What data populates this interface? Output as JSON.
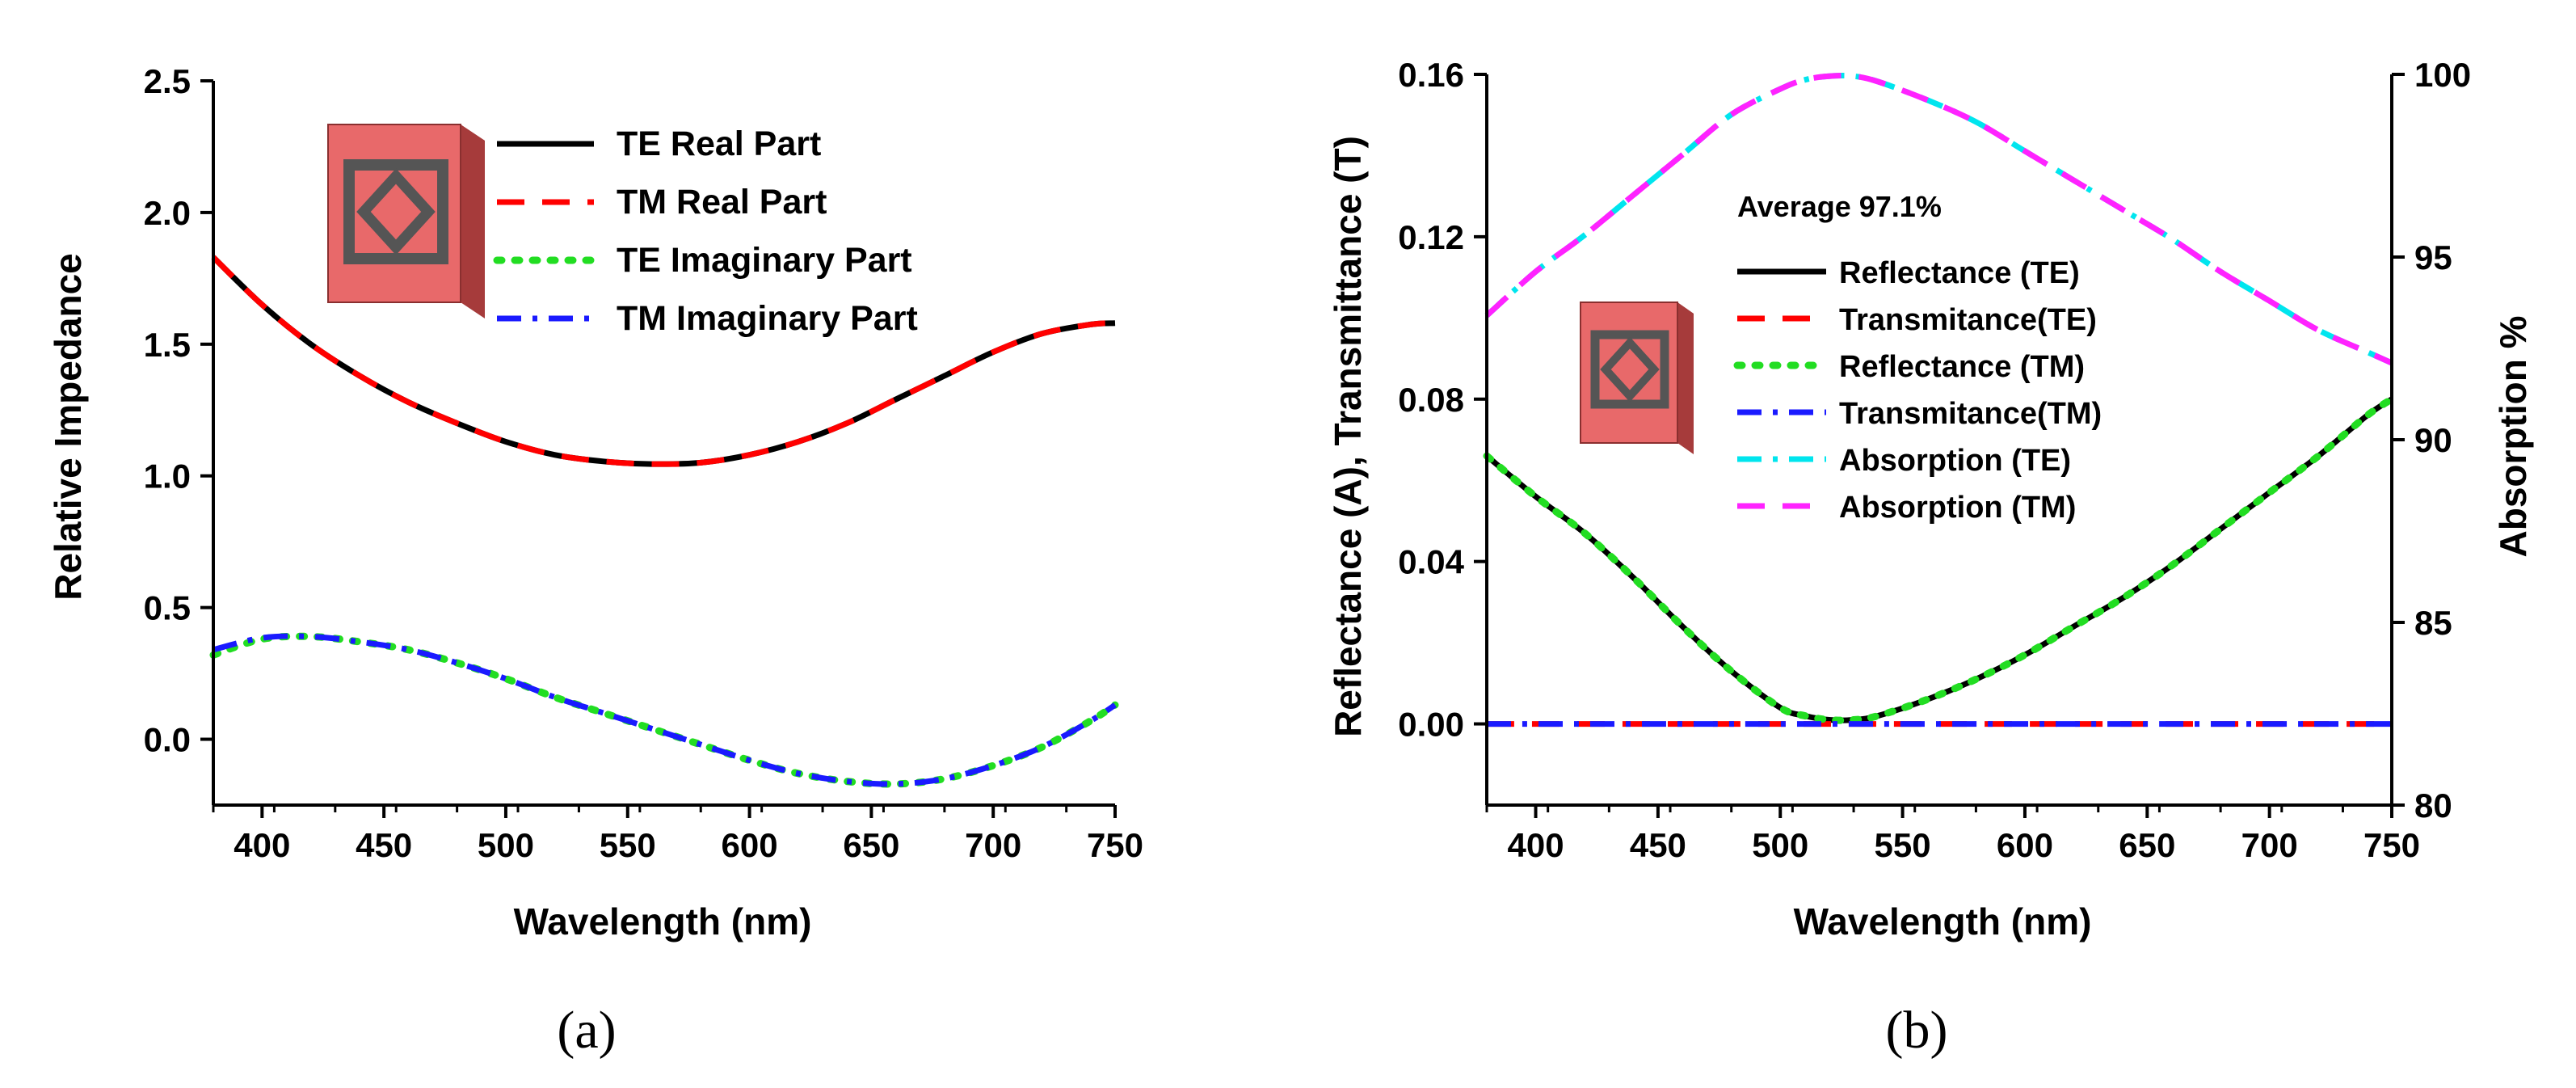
{
  "chart_data": [
    {
      "id": "a",
      "type": "line",
      "caption": "(a)",
      "xlabel": "Wavelength (nm)",
      "ylabel": "Relative Impedance",
      "xlim": [
        380,
        750
      ],
      "ylim": [
        -0.25,
        2.5
      ],
      "xticks": [
        400,
        450,
        500,
        550,
        600,
        650,
        700,
        750
      ],
      "xtick_labels": [
        "400",
        "450",
        "500",
        "550",
        "600",
        "650",
        "700",
        "750"
      ],
      "yticks": [
        0.0,
        0.5,
        1.0,
        1.5,
        2.0,
        2.5
      ],
      "ytick_labels": [
        "0.0",
        "0.5",
        "1.0",
        "1.5",
        "2.0",
        "2.5"
      ],
      "legend_position": "top-center",
      "series": [
        {
          "name": "TE Real Part",
          "color": "#000000",
          "style": "solid",
          "x": [
            380,
            400,
            420,
            440,
            460,
            480,
            500,
            520,
            540,
            560,
            580,
            600,
            620,
            640,
            660,
            680,
            700,
            720,
            740,
            750
          ],
          "y": [
            1.83,
            1.65,
            1.5,
            1.38,
            1.28,
            1.2,
            1.13,
            1.08,
            1.055,
            1.045,
            1.05,
            1.08,
            1.13,
            1.2,
            1.29,
            1.38,
            1.47,
            1.54,
            1.575,
            1.58
          ]
        },
        {
          "name": "TM Real Part",
          "color": "#ff0000",
          "style": "dash",
          "x": [
            380,
            400,
            420,
            440,
            460,
            480,
            500,
            520,
            540,
            560,
            580,
            600,
            620,
            640,
            660,
            680,
            700,
            720,
            740,
            750
          ],
          "y": [
            1.83,
            1.65,
            1.5,
            1.38,
            1.28,
            1.2,
            1.13,
            1.08,
            1.055,
            1.045,
            1.05,
            1.08,
            1.13,
            1.2,
            1.29,
            1.38,
            1.47,
            1.54,
            1.575,
            1.58
          ]
        },
        {
          "name": "TE Imaginary Part",
          "color": "#22dd22",
          "style": "dot",
          "x": [
            380,
            400,
            420,
            440,
            460,
            480,
            500,
            520,
            540,
            560,
            580,
            600,
            620,
            640,
            660,
            680,
            700,
            720,
            740,
            750
          ],
          "y": [
            0.32,
            0.38,
            0.39,
            0.37,
            0.34,
            0.29,
            0.23,
            0.16,
            0.1,
            0.04,
            -0.02,
            -0.08,
            -0.13,
            -0.16,
            -0.17,
            -0.15,
            -0.1,
            -0.03,
            0.07,
            0.13
          ]
        },
        {
          "name": "TM Imaginary Part",
          "color": "#1a1aff",
          "style": "dashdot",
          "x": [
            380,
            400,
            420,
            440,
            460,
            480,
            500,
            520,
            540,
            560,
            580,
            600,
            620,
            640,
            660,
            680,
            700,
            720,
            740,
            750
          ],
          "y": [
            0.34,
            0.385,
            0.39,
            0.37,
            0.34,
            0.29,
            0.23,
            0.16,
            0.1,
            0.04,
            -0.02,
            -0.08,
            -0.13,
            -0.16,
            -0.17,
            -0.15,
            -0.1,
            -0.03,
            0.07,
            0.13
          ]
        }
      ]
    },
    {
      "id": "b",
      "type": "line",
      "caption": "(b)",
      "xlabel": "Wavelength (nm)",
      "ylabel": "Reflectance (A), Transmittance (T)",
      "ylabel_right": "Absorption %",
      "annotation": "Average 97.1%",
      "xlim": [
        380,
        750
      ],
      "ylim": [
        -0.02,
        0.16
      ],
      "ylim_right": [
        80,
        100
      ],
      "xticks": [
        400,
        450,
        500,
        550,
        600,
        650,
        700,
        750
      ],
      "xtick_labels": [
        "400",
        "450",
        "500",
        "550",
        "600",
        "650",
        "700",
        "750"
      ],
      "yticks": [
        0.0,
        0.04,
        0.08,
        0.12,
        0.16
      ],
      "ytick_labels": [
        "0.00",
        "0.04",
        "0.08",
        "0.12",
        "0.16"
      ],
      "yticks_right": [
        80,
        85,
        90,
        95,
        100
      ],
      "ytick_labels_right": [
        "80",
        "85",
        "90",
        "95",
        "100"
      ],
      "legend_position": "center",
      "series": [
        {
          "name": "Reflectance (TE)",
          "color": "#000000",
          "style": "solid",
          "axis": "left",
          "x": [
            380,
            400,
            420,
            440,
            460,
            480,
            500,
            510,
            520,
            530,
            540,
            560,
            580,
            600,
            620,
            640,
            660,
            680,
            700,
            720,
            740,
            750
          ],
          "y": [
            0.066,
            0.056,
            0.047,
            0.036,
            0.024,
            0.013,
            0.004,
            0.002,
            0.001,
            0.001,
            0.002,
            0.006,
            0.011,
            0.017,
            0.024,
            0.031,
            0.039,
            0.048,
            0.057,
            0.066,
            0.076,
            0.08
          ]
        },
        {
          "name": "Transmitance(TE)",
          "color": "#ff0000",
          "style": "dash",
          "axis": "left",
          "x": [
            380,
            750
          ],
          "y": [
            0.0,
            0.0
          ]
        },
        {
          "name": "Reflectance (TM)",
          "color": "#22dd22",
          "style": "dot",
          "axis": "left",
          "x": [
            380,
            400,
            420,
            440,
            460,
            480,
            500,
            510,
            520,
            530,
            540,
            560,
            580,
            600,
            620,
            640,
            660,
            680,
            700,
            720,
            740,
            750
          ],
          "y": [
            0.066,
            0.056,
            0.047,
            0.036,
            0.024,
            0.013,
            0.004,
            0.002,
            0.001,
            0.001,
            0.002,
            0.006,
            0.011,
            0.017,
            0.024,
            0.031,
            0.039,
            0.048,
            0.057,
            0.066,
            0.076,
            0.08
          ]
        },
        {
          "name": "Transmitance(TM)",
          "color": "#1a1aff",
          "style": "dashdot",
          "axis": "left",
          "x": [
            380,
            750
          ],
          "y": [
            0.0,
            0.0
          ]
        },
        {
          "name": "Absorption (TE)",
          "color": "#00e5ee",
          "style": "dashdot",
          "axis": "right",
          "x": [
            380,
            400,
            420,
            440,
            460,
            480,
            500,
            510,
            520,
            530,
            540,
            560,
            580,
            600,
            620,
            640,
            660,
            680,
            700,
            720,
            740,
            750
          ],
          "y": [
            93.4,
            94.6,
            95.6,
            96.7,
            97.8,
            98.9,
            99.6,
            99.85,
            99.95,
            99.95,
            99.8,
            99.3,
            98.7,
            97.9,
            97.1,
            96.3,
            95.5,
            94.6,
            93.8,
            93.0,
            92.4,
            92.1
          ]
        },
        {
          "name": "Absorption (TM)",
          "color": "#ff22ff",
          "style": "dash",
          "axis": "right",
          "x": [
            380,
            400,
            420,
            440,
            460,
            480,
            500,
            510,
            520,
            530,
            540,
            560,
            580,
            600,
            620,
            640,
            660,
            680,
            700,
            720,
            740,
            750
          ],
          "y": [
            93.4,
            94.6,
            95.6,
            96.7,
            97.8,
            98.9,
            99.6,
            99.85,
            99.95,
            99.95,
            99.8,
            99.3,
            98.7,
            97.9,
            97.1,
            96.3,
            95.5,
            94.6,
            93.8,
            93.0,
            92.4,
            92.1
          ]
        }
      ]
    }
  ],
  "colors": {
    "unit_cell_face": "#e8696a",
    "unit_cell_side": "#c04a4a",
    "unit_cell_ring": "#5a5a5a",
    "unit_cell_ring_edge": "#2b2b2b"
  }
}
